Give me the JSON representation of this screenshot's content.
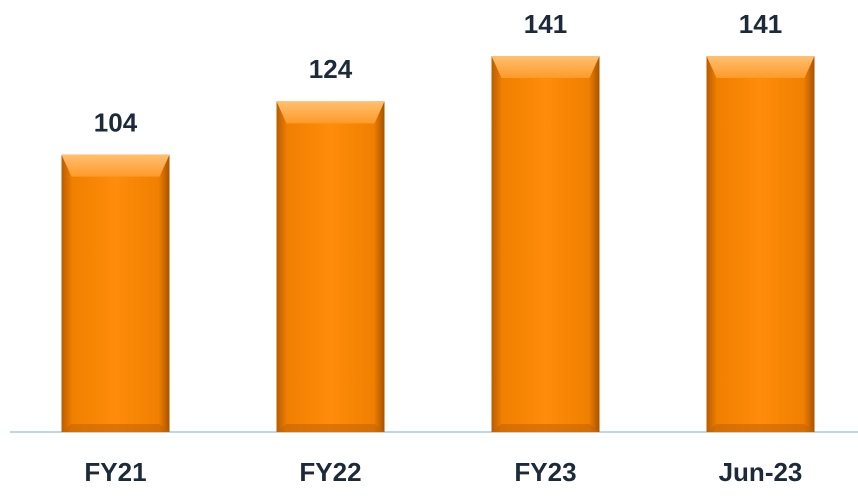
{
  "chart_data": {
    "type": "bar",
    "categories": [
      "FY21",
      "FY22",
      "FY23",
      "Jun-23"
    ],
    "values": [
      104,
      124,
      141,
      141
    ],
    "color": "#ff8c00",
    "ylim": [
      0,
      162
    ]
  }
}
